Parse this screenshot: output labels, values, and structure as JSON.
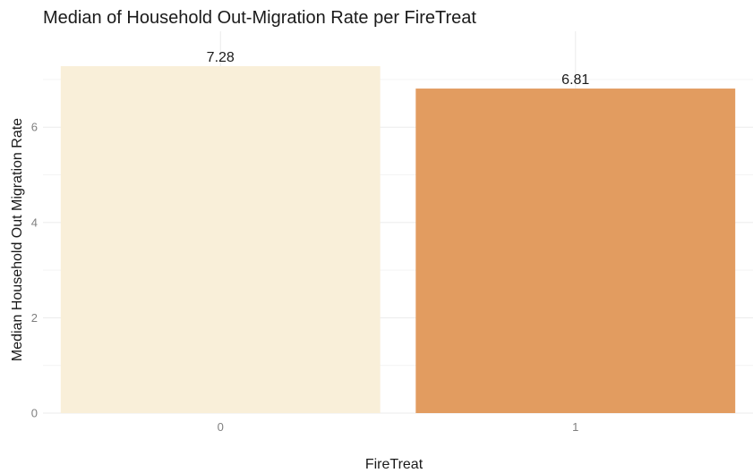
{
  "chart_data": {
    "type": "bar",
    "title": "Median of Household Out-Migration Rate per FireTreat",
    "xlabel": "FireTreat",
    "ylabel": "Median Household Out Migration Rate",
    "categories": [
      "0",
      "1"
    ],
    "values": [
      7.28,
      6.81
    ],
    "value_labels": [
      "7.28",
      "6.81"
    ],
    "colors": [
      "#f9efd9",
      "#e29c60"
    ],
    "ylim": [
      0,
      7.28
    ],
    "yticks": [
      0,
      2,
      4,
      6
    ],
    "ytick_labels": [
      "0",
      "2",
      "4",
      "6"
    ],
    "minor_yticks": [
      1,
      3,
      5,
      7
    ],
    "grid": true,
    "legend": "none"
  }
}
